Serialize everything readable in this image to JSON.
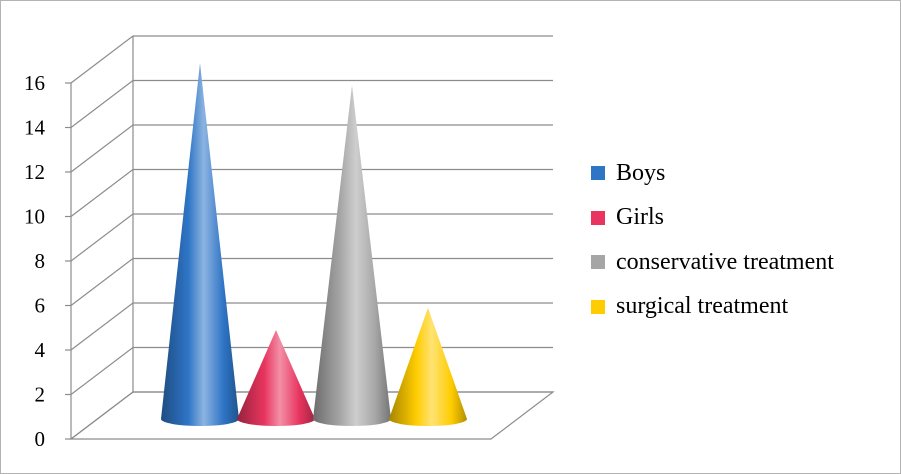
{
  "chart_data": {
    "type": "bar",
    "bar_shape": "cone",
    "projection": "3d",
    "categories": [
      "Boys",
      "Girls",
      "conservative treatment",
      "surgical treatment"
    ],
    "values": [
      16,
      4,
      15,
      5
    ],
    "colors": [
      "#2e75c6",
      "#e8345e",
      "#a6a6a6",
      "#ffcc00"
    ],
    "ylim": [
      0,
      16
    ],
    "yticks": [
      "0",
      "2",
      "4",
      "6",
      "8",
      "10",
      "12",
      "14",
      "16"
    ],
    "grid": true,
    "legend_position": "right",
    "title": "",
    "xlabel": "",
    "ylabel": ""
  }
}
